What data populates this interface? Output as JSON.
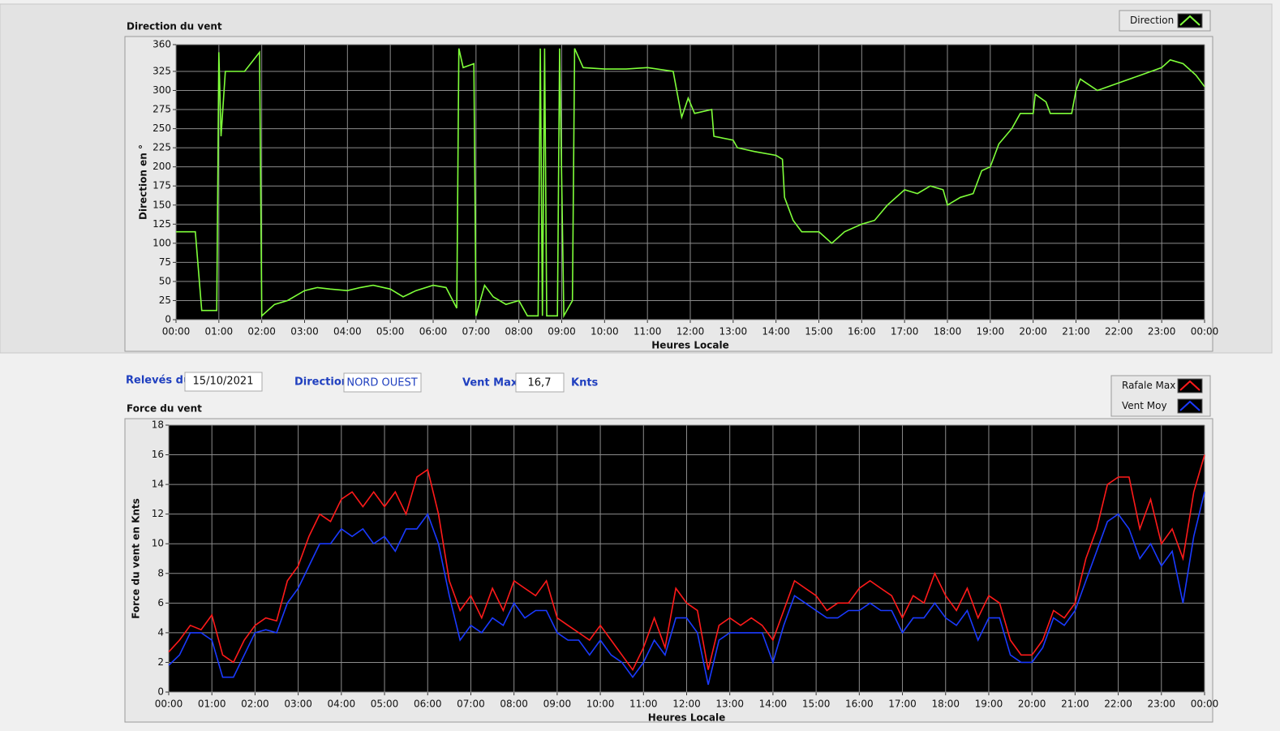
{
  "fields": {
    "date_label": "Relevés du",
    "date": "15/10/2021",
    "direction_label": "Direction",
    "direction": "NORD OUEST",
    "max_label": "Vent Max",
    "max": "16,7",
    "max_unit": "Knts"
  },
  "chart_data": [
    {
      "type": "line",
      "title": "Direction du vent",
      "x_label": "Heures Locale",
      "y_label": "Direction en °",
      "xlim": [
        0,
        24
      ],
      "ylim": [
        0,
        360
      ],
      "grid": true,
      "xticks": [
        {
          "value": 0,
          "label": "00:00"
        },
        {
          "value": 1,
          "label": "01:00"
        },
        {
          "value": 2,
          "label": "02:00"
        },
        {
          "value": 3,
          "label": "03:00"
        },
        {
          "value": 4,
          "label": "04:00"
        },
        {
          "value": 5,
          "label": "05:00"
        },
        {
          "value": 6,
          "label": "06:00"
        },
        {
          "value": 7,
          "label": "07:00"
        },
        {
          "value": 8,
          "label": "08:00"
        },
        {
          "value": 9,
          "label": "09:00"
        },
        {
          "value": 10,
          "label": "10:00"
        },
        {
          "value": 11,
          "label": "11:00"
        },
        {
          "value": 12,
          "label": "12:00"
        },
        {
          "value": 13,
          "label": "13:00"
        },
        {
          "value": 14,
          "label": "14:00"
        },
        {
          "value": 15,
          "label": "15:00"
        },
        {
          "value": 16,
          "label": "16:00"
        },
        {
          "value": 17,
          "label": "17:00"
        },
        {
          "value": 18,
          "label": "18:00"
        },
        {
          "value": 19,
          "label": "19:00"
        },
        {
          "value": 20,
          "label": "20:00"
        },
        {
          "value": 21,
          "label": "21:00"
        },
        {
          "value": 22,
          "label": "22:00"
        },
        {
          "value": 23,
          "label": "23:00"
        },
        {
          "value": 24,
          "label": "00:00"
        }
      ],
      "yticks": [
        0,
        25,
        50,
        75,
        100,
        125,
        150,
        175,
        200,
        225,
        250,
        275,
        300,
        325,
        360
      ],
      "x": [
        0,
        0.45,
        0.6,
        0.95,
        1,
        1.05,
        1.15,
        1.6,
        1.95,
        2,
        2.3,
        2.6,
        3,
        3.3,
        3.6,
        4,
        4.3,
        4.6,
        5,
        5.3,
        5.6,
        6,
        6.3,
        6.55,
        6.6,
        6.7,
        6.95,
        7,
        7.2,
        7.4,
        7.7,
        8,
        8.2,
        8.45,
        8.5,
        8.55,
        8.6,
        8.65,
        8.9,
        8.95,
        9.05,
        9.15,
        9.25,
        9.3,
        9.5,
        10,
        10.5,
        11,
        11.6,
        11.8,
        11.95,
        12.1,
        12.5,
        12.55,
        13,
        13.1,
        13.5,
        14,
        14.15,
        14.2,
        14.4,
        14.6,
        15,
        15.3,
        15.6,
        16,
        16.3,
        16.6,
        17,
        17.3,
        17.6,
        17.9,
        18,
        18.3,
        18.6,
        18.8,
        19,
        19.2,
        19.5,
        19.7,
        20,
        20.05,
        20.3,
        20.4,
        20.9,
        21,
        21.1,
        21.5,
        22,
        22.5,
        23,
        23.2,
        23.5,
        23.8,
        24
      ],
      "series": [
        {
          "name": "Direction",
          "color": "#7fff3a",
          "values": [
            115,
            115,
            12,
            12,
            350,
            240,
            325,
            325,
            350,
            5,
            20,
            25,
            38,
            42,
            40,
            38,
            42,
            45,
            40,
            30,
            38,
            45,
            42,
            15,
            355,
            330,
            335,
            5,
            45,
            30,
            20,
            25,
            5,
            5,
            355,
            5,
            355,
            5,
            5,
            355,
            5,
            15,
            25,
            355,
            330,
            328,
            328,
            330,
            325,
            265,
            290,
            270,
            275,
            240,
            235,
            225,
            220,
            215,
            210,
            160,
            130,
            115,
            115,
            100,
            115,
            125,
            130,
            150,
            170,
            165,
            175,
            170,
            150,
            160,
            165,
            195,
            200,
            230,
            250,
            270,
            270,
            295,
            285,
            270,
            270,
            300,
            315,
            300,
            310,
            320,
            330,
            340,
            335,
            320,
            305
          ]
        }
      ]
    },
    {
      "type": "line",
      "title": "Force du vent",
      "x_label": "Heures Locale",
      "y_label": "Force du vent en Knts",
      "xlim": [
        0,
        24
      ],
      "ylim": [
        0,
        18
      ],
      "grid": true,
      "xticks": [
        {
          "value": 0,
          "label": "00:00"
        },
        {
          "value": 1,
          "label": "01:00"
        },
        {
          "value": 2,
          "label": "02:00"
        },
        {
          "value": 3,
          "label": "03:00"
        },
        {
          "value": 4,
          "label": "04:00"
        },
        {
          "value": 5,
          "label": "05:00"
        },
        {
          "value": 6,
          "label": "06:00"
        },
        {
          "value": 7,
          "label": "07:00"
        },
        {
          "value": 8,
          "label": "08:00"
        },
        {
          "value": 9,
          "label": "09:00"
        },
        {
          "value": 10,
          "label": "10:00"
        },
        {
          "value": 11,
          "label": "11:00"
        },
        {
          "value": 12,
          "label": "12:00"
        },
        {
          "value": 13,
          "label": "13:00"
        },
        {
          "value": 14,
          "label": "14:00"
        },
        {
          "value": 15,
          "label": "15:00"
        },
        {
          "value": 16,
          "label": "16:00"
        },
        {
          "value": 17,
          "label": "17:00"
        },
        {
          "value": 18,
          "label": "18:00"
        },
        {
          "value": 19,
          "label": "19:00"
        },
        {
          "value": 20,
          "label": "20:00"
        },
        {
          "value": 21,
          "label": "21:00"
        },
        {
          "value": 22,
          "label": "22:00"
        },
        {
          "value": 23,
          "label": "23:00"
        },
        {
          "value": 24,
          "label": "00:00"
        }
      ],
      "yticks": [
        0,
        2,
        4,
        6,
        8,
        10,
        12,
        14,
        16,
        18
      ],
      "x": [
        0,
        0.25,
        0.5,
        0.75,
        1,
        1.25,
        1.5,
        1.75,
        2,
        2.25,
        2.5,
        2.75,
        3,
        3.25,
        3.5,
        3.75,
        4,
        4.25,
        4.5,
        4.75,
        5,
        5.25,
        5.5,
        5.75,
        6,
        6.25,
        6.5,
        6.75,
        7,
        7.25,
        7.5,
        7.75,
        8,
        8.25,
        8.5,
        8.75,
        9,
        9.25,
        9.5,
        9.75,
        10,
        10.25,
        10.5,
        10.75,
        11,
        11.25,
        11.5,
        11.75,
        12,
        12.25,
        12.5,
        12.75,
        13,
        13.25,
        13.5,
        13.75,
        14,
        14.25,
        14.5,
        14.75,
        15,
        15.25,
        15.5,
        15.75,
        16,
        16.25,
        16.5,
        16.75,
        17,
        17.25,
        17.5,
        17.75,
        18,
        18.25,
        18.5,
        18.75,
        19,
        19.25,
        19.5,
        19.75,
        20,
        20.25,
        20.5,
        20.75,
        21,
        21.25,
        21.5,
        21.75,
        22,
        22.25,
        22.5,
        22.75,
        23,
        23.25,
        23.5,
        23.75,
        24
      ],
      "series": [
        {
          "name": "Rafale Max",
          "color": "#ff1a1a",
          "values": [
            2.7,
            3.5,
            4.5,
            4.2,
            5.2,
            2.5,
            2,
            3.5,
            4.5,
            5,
            4.8,
            7.5,
            8.5,
            10.5,
            12,
            11.5,
            13,
            13.5,
            12.5,
            13.5,
            12.5,
            13.5,
            12,
            14.5,
            15,
            12,
            7.5,
            5.5,
            6.5,
            5,
            7,
            5.5,
            7.5,
            7,
            6.5,
            7.5,
            5,
            4.5,
            4,
            3.5,
            4.5,
            3.5,
            2.5,
            1.5,
            3,
            5,
            3,
            7,
            6,
            5.5,
            1.5,
            4.5,
            5,
            4.5,
            5,
            4.5,
            3.5,
            5.5,
            7.5,
            7,
            6.5,
            5.5,
            6,
            6,
            7,
            7.5,
            7,
            6.5,
            5,
            6.5,
            6,
            8,
            6.5,
            5.5,
            7,
            5,
            6.5,
            6,
            3.5,
            2.5,
            2.5,
            3.5,
            5.5,
            5,
            6,
            9,
            11,
            14,
            14.5,
            14.5,
            11,
            13,
            10,
            11,
            9,
            13.5,
            16
          ]
        },
        {
          "name": "Vent Moy",
          "color": "#1a3aff",
          "values": [
            1.8,
            2.5,
            4,
            4,
            3.5,
            1,
            1,
            2.5,
            4,
            4.2,
            4,
            6,
            7,
            8.5,
            10,
            10,
            11,
            10.5,
            11,
            10,
            10.5,
            9.5,
            11,
            11,
            12,
            10,
            6.5,
            3.5,
            4.5,
            4,
            5,
            4.5,
            6,
            5,
            5.5,
            5.5,
            4,
            3.5,
            3.5,
            2.5,
            3.5,
            2.5,
            2,
            1,
            2,
            3.5,
            2.5,
            5,
            5,
            4,
            0.5,
            3.5,
            4,
            4,
            4,
            4,
            2,
            4.5,
            6.5,
            6,
            5.5,
            5,
            5,
            5.5,
            5.5,
            6,
            5.5,
            5.5,
            4,
            5,
            5,
            6,
            5,
            4.5,
            5.5,
            3.5,
            5,
            5,
            2.5,
            2,
            2,
            3,
            5,
            4.5,
            5.5,
            7.5,
            9.5,
            11.5,
            12,
            11,
            9,
            10,
            8.5,
            9.5,
            6,
            10.5,
            13.5
          ]
        }
      ]
    }
  ]
}
